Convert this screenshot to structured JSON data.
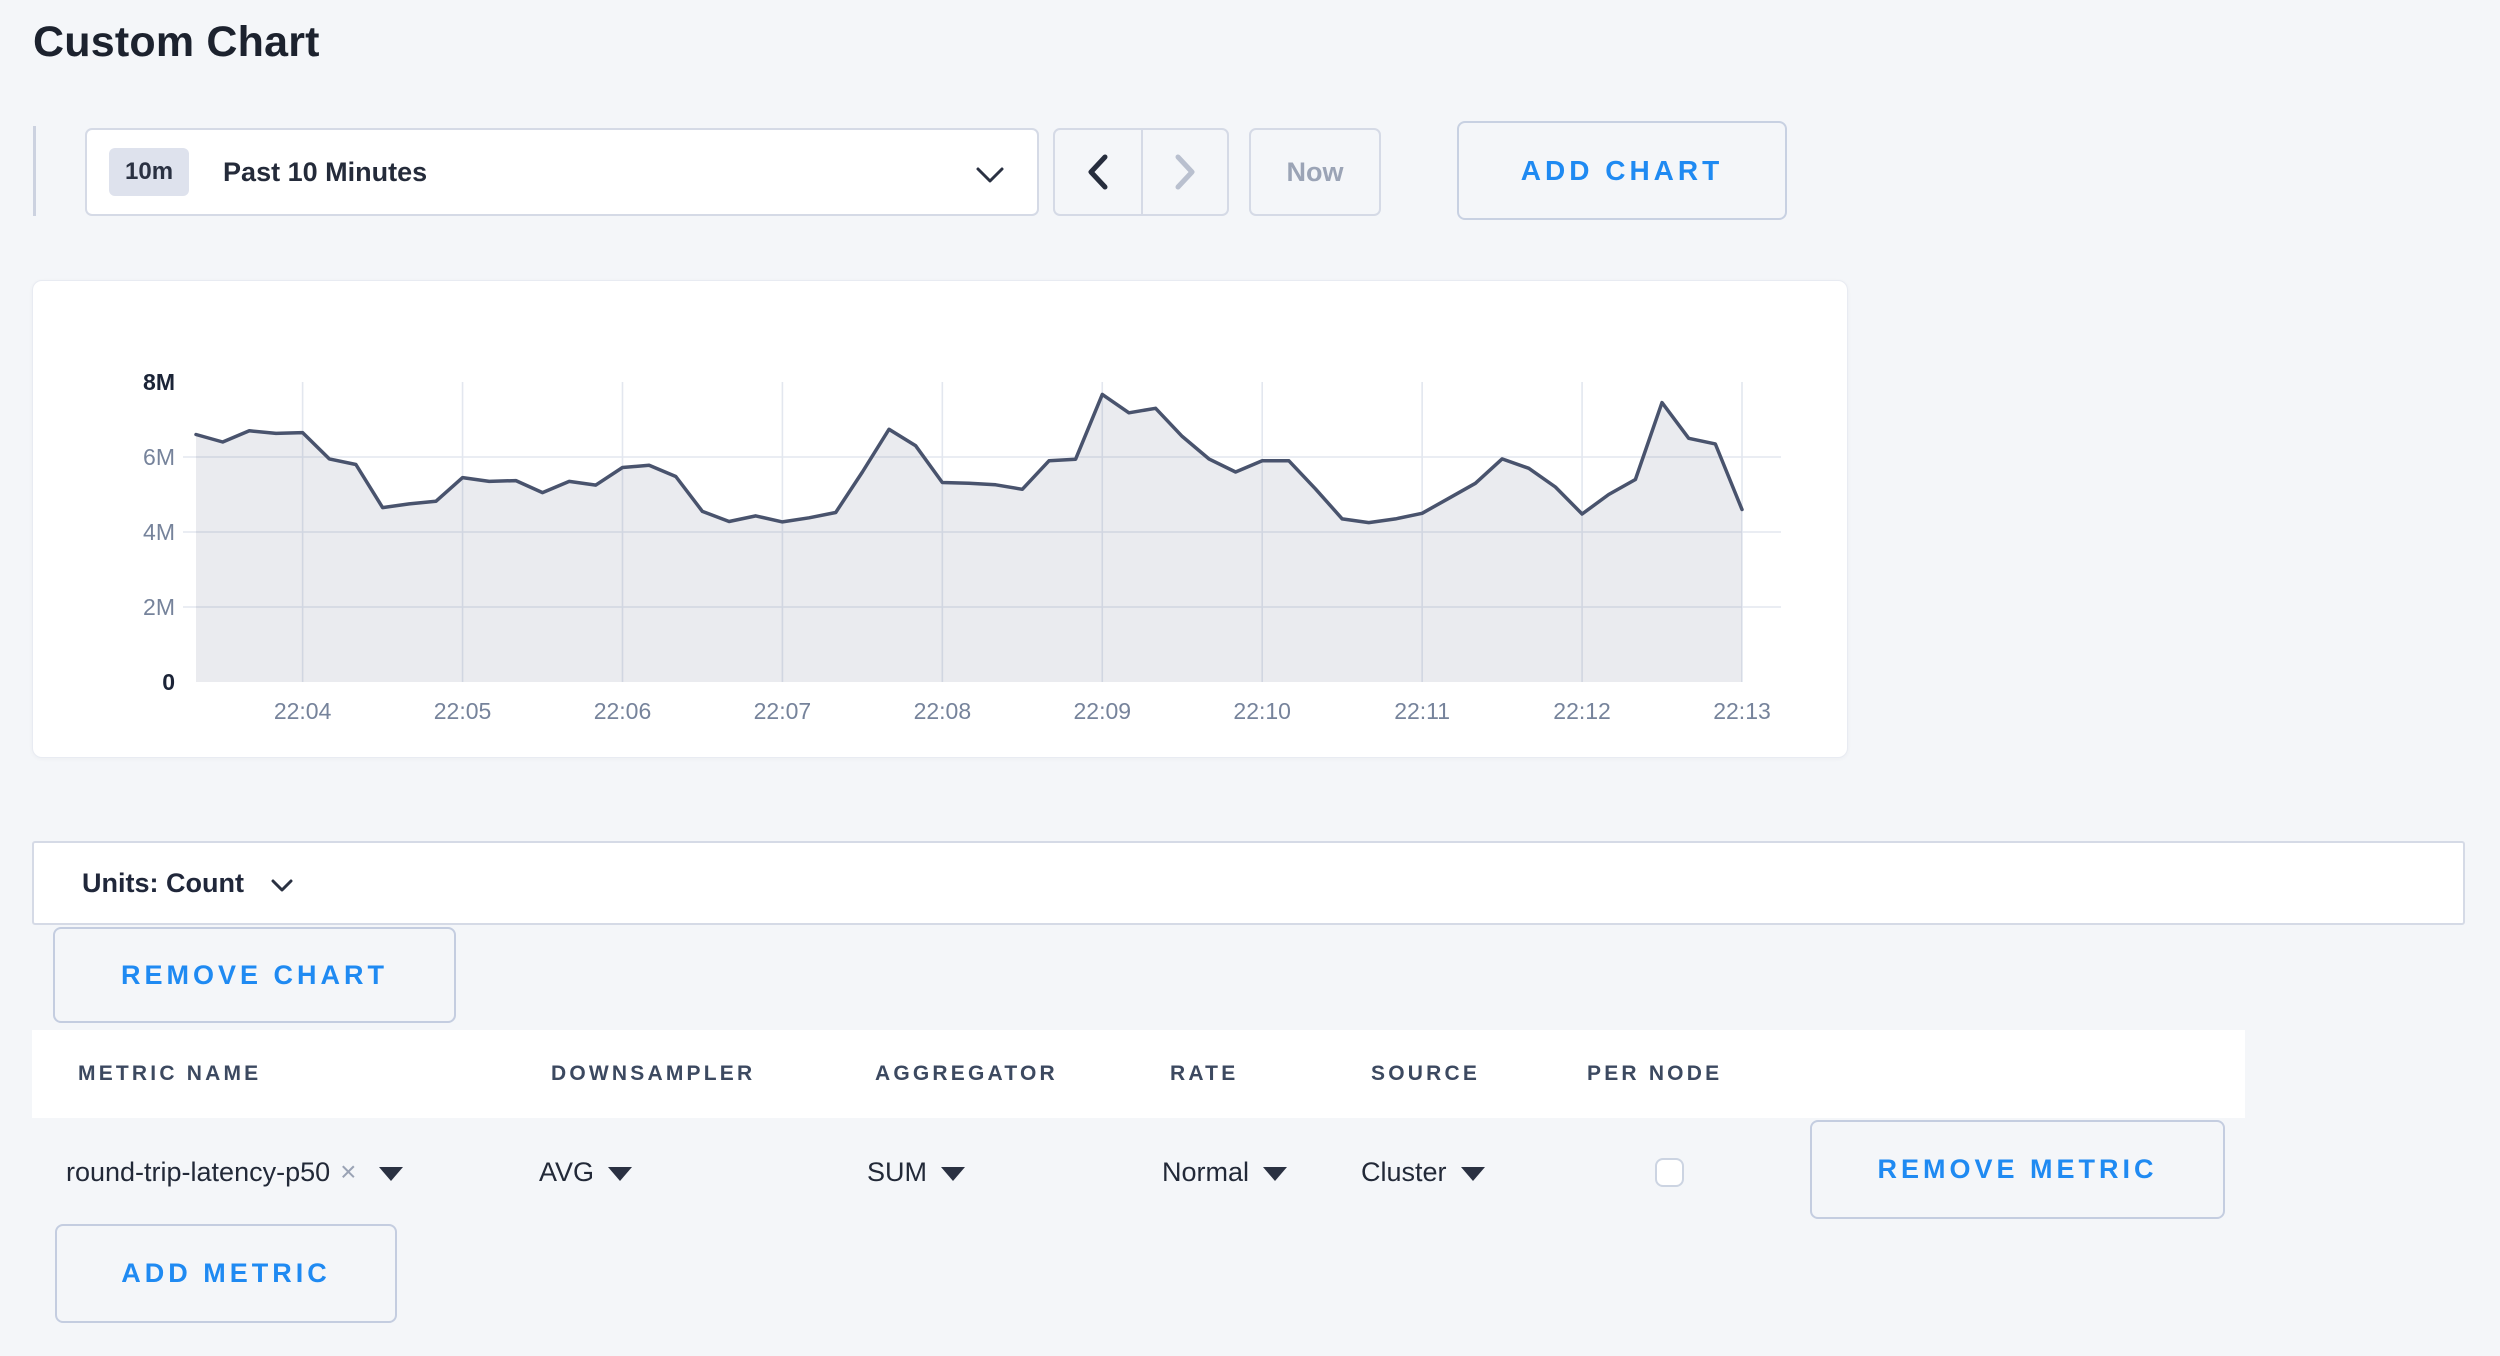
{
  "page": {
    "title": "Custom Chart"
  },
  "toolbar": {
    "time_badge": "10m",
    "time_label": "Past 10 Minutes",
    "now_label": "Now",
    "add_chart_label": "ADD CHART"
  },
  "chart_data": {
    "type": "area",
    "title": "",
    "xlabel": "",
    "ylabel": "",
    "unit": "Count",
    "legend": "none",
    "grid": true,
    "ylim_millions": [
      0,
      8
    ],
    "y_ticks": [
      "0",
      "2M",
      "4M",
      "6M",
      "8M"
    ],
    "y_tick_values_millions": [
      0,
      2,
      4,
      6,
      8
    ],
    "y_gridline_values_millions": [
      2,
      4,
      6
    ],
    "x_ticks": [
      "22:04",
      "22:05",
      "22:06",
      "22:07",
      "22:08",
      "22:09",
      "22:10",
      "22:11",
      "22:12",
      "22:13"
    ],
    "first_tick_point_index": 4,
    "points_per_tick": 6,
    "sample_interval_seconds": 10,
    "series": [
      {
        "name": "round-trip-latency-p50",
        "values_millions": [
          6.6,
          6.4,
          6.7,
          6.63,
          6.65,
          5.95,
          5.8,
          4.65,
          4.75,
          4.82,
          5.45,
          5.35,
          5.37,
          5.05,
          5.35,
          5.25,
          5.72,
          5.78,
          5.48,
          4.55,
          4.28,
          4.43,
          4.27,
          4.38,
          4.52,
          5.6,
          6.74,
          6.3,
          5.32,
          5.3,
          5.26,
          5.14,
          5.9,
          5.94,
          7.67,
          7.18,
          7.3,
          6.55,
          5.95,
          5.6,
          5.9,
          5.9,
          5.15,
          4.35,
          4.25,
          4.35,
          4.5,
          4.9,
          5.3,
          5.95,
          5.7,
          5.2,
          4.48,
          5.0,
          5.4,
          7.45,
          6.5,
          6.35,
          4.6
        ]
      }
    ]
  },
  "units_bar": {
    "label": "Units: Count"
  },
  "chart_actions": {
    "remove_chart_label": "REMOVE CHART"
  },
  "metrics_table": {
    "columns": [
      "METRIC NAME",
      "DOWNSAMPLER",
      "AGGREGATOR",
      "RATE",
      "SOURCE",
      "PER NODE"
    ],
    "rows": [
      {
        "metric_name": "round-trip-latency-p50",
        "downsampler": "AVG",
        "aggregator": "SUM",
        "rate": "Normal",
        "source": "Cluster",
        "per_node_checked": false,
        "remove_label": "REMOVE METRIC"
      }
    ],
    "add_metric_label": "ADD METRIC"
  },
  "colors": {
    "accent_blue": "#1f8af2",
    "page_bg": "#f4f6f9",
    "line": "#49536d",
    "area_fill": "rgba(90,103,132,0.13)",
    "gridline": "#e3e7ef",
    "axis_tick_text": "#76839b",
    "axis_tick_text_bold": "#1b2437",
    "dark_text": "#242b3a",
    "muted_text": "#9ba4b6",
    "border": "#d5dae6"
  }
}
